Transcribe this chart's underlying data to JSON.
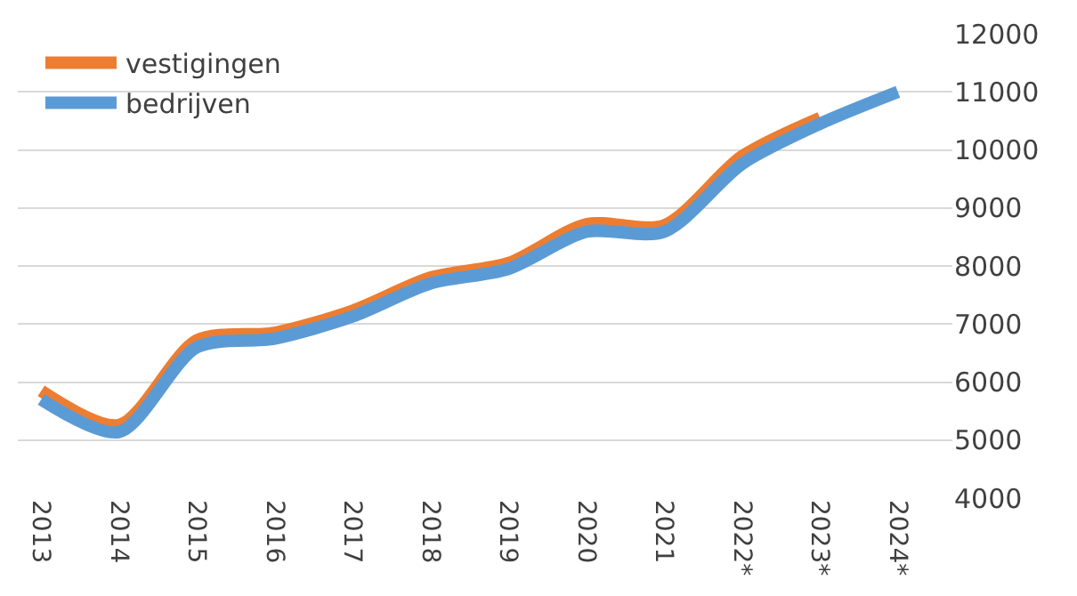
{
  "chart_data": {
    "type": "line",
    "categories": [
      "2013",
      "2014",
      "2015",
      "2016",
      "2017",
      "2018",
      "2019",
      "2020",
      "2021",
      "2022*",
      "2023*",
      "2024*"
    ],
    "series": [
      {
        "name": "vestigingen",
        "color": "#ed7d31",
        "values": [
          5850,
          5260,
          6720,
          6850,
          7230,
          7800,
          8050,
          8720,
          8700,
          9890,
          10550,
          null
        ]
      },
      {
        "name": "bedrijven",
        "color": "#5b9bd5",
        "values": [
          5700,
          5140,
          6600,
          6750,
          7130,
          7700,
          7950,
          8590,
          8590,
          9760,
          10450,
          11000
        ]
      }
    ],
    "ylim": [
      4000,
      12000
    ],
    "yticks": [
      4000,
      5000,
      6000,
      7000,
      8000,
      9000,
      10000,
      11000,
      12000
    ],
    "grid": "y",
    "legend": "top left",
    "marker": "none",
    "line_style": "solid"
  }
}
